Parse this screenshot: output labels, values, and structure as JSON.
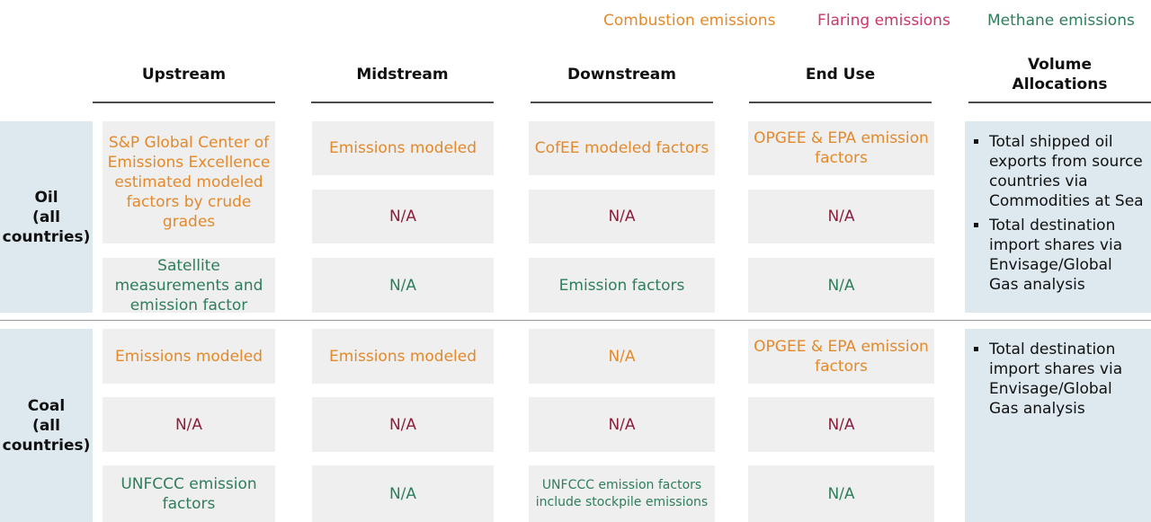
{
  "legend": {
    "combustion": "Combustion emissions",
    "flaring": "Flaring emissions",
    "methane": "Methane emissions"
  },
  "colors": {
    "combustion": "#e3892b",
    "flaring": "#c8366b",
    "methane": "#2e7d5b",
    "na": "#8b1e3a",
    "row_label_bg": "#dde9ef",
    "cell_bg": "#efefef"
  },
  "columns": {
    "upstream": "Upstream",
    "midstream": "Midstream",
    "downstream": "Downstream",
    "end_use": "End Use",
    "volume": "Volume\nAllocations"
  },
  "oil": {
    "label": "Oil\n(all\ncountries)",
    "combustion": {
      "upstream": "S&P Global Center of Emissions Excellence estimated modeled factors by crude grades",
      "midstream": "Emissions modeled",
      "downstream": "CofEE modeled factors",
      "end_use": "OPGEE & EPA emission factors"
    },
    "flaring": {
      "midstream": "N/A",
      "downstream": "N/A",
      "end_use": "N/A"
    },
    "methane": {
      "upstream": "Satellite measurements and emission factor",
      "midstream": "N/A",
      "downstream": "Emission factors",
      "end_use": "N/A"
    },
    "volume": [
      "Total shipped oil exports from source countries via Commodities at Sea",
      "Total destination import shares via Envisage/Global Gas analysis"
    ]
  },
  "coal": {
    "label": "Coal\n(all\ncountries)",
    "combustion": {
      "upstream": "Emissions modeled",
      "midstream": "Emissions modeled",
      "downstream": "N/A",
      "end_use": "OPGEE & EPA emission factors"
    },
    "flaring": {
      "upstream": "N/A",
      "midstream": "N/A",
      "downstream": "N/A",
      "end_use": "N/A"
    },
    "methane": {
      "upstream": "UNFCCC emission factors",
      "midstream": "N/A",
      "downstream": "UNFCCC emission factors include stockpile emissions",
      "end_use": "N/A"
    },
    "volume": [
      "Total destination import shares via Envisage/Global Gas analysis"
    ]
  }
}
